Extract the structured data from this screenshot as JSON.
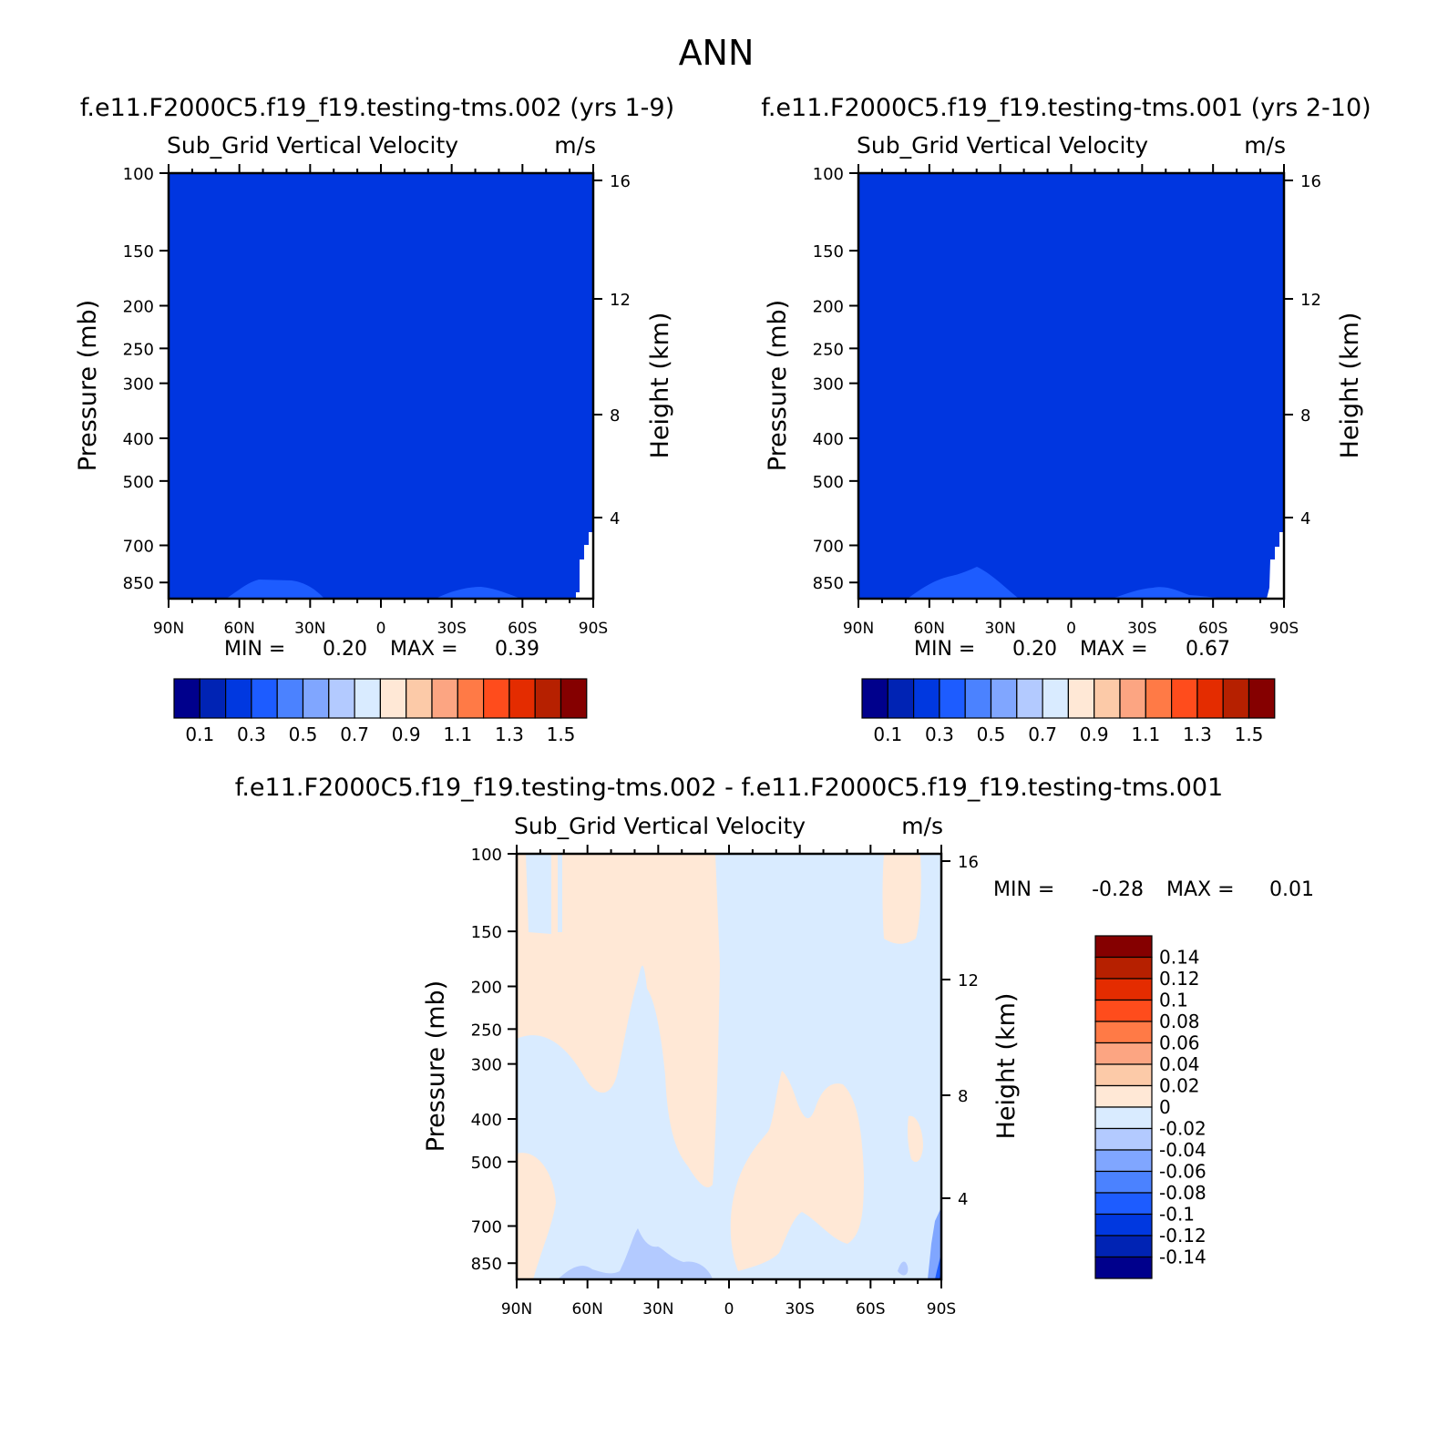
{
  "figure": {
    "title": "ANN",
    "diff_title": "f.e11.F2000C5.f19_f19.testing-tms.002 - f.e11.F2000C5.f19_f19.testing-tms.001"
  },
  "colors": {
    "main_scale": [
      "#00008c",
      "#0023b4",
      "#0038e0",
      "#1d5cff",
      "#4b82ff",
      "#80a6ff",
      "#b3caff",
      "#d9ebff",
      "#ffe8d6",
      "#fccaa8",
      "#fca582",
      "#ff7a46",
      "#ff4c1c",
      "#e42c00",
      "#b62000",
      "#850000"
    ],
    "diff_scale": [
      "#00008c",
      "#0023b4",
      "#0038e0",
      "#1d5cff",
      "#4b82ff",
      "#80a6ff",
      "#b3caff",
      "#d9ebff",
      "#ffe8d6",
      "#fccaa8",
      "#fca582",
      "#ff7a46",
      "#ff4c1c",
      "#e42c00",
      "#b62000",
      "#850000"
    ]
  },
  "chart_data": [
    {
      "type": "heatmap",
      "title": "f.e11.F2000C5.f19_f19.testing-tms.002 (yrs 1-9)",
      "subtitle": "Sub_Grid Vertical Velocity",
      "units": "m/s",
      "xlabel": "",
      "ylabel": "Pressure (mb)",
      "y2label": "Height (km)",
      "x_ticks": [
        "90N",
        "60N",
        "30N",
        "0",
        "30S",
        "60S",
        "90S"
      ],
      "y_ticks": [
        100,
        150,
        200,
        250,
        300,
        400,
        500,
        700,
        850
      ],
      "y2_ticks": [
        16,
        12,
        8,
        4
      ],
      "ylim": [
        100,
        925
      ],
      "min_label": "MIN =",
      "min_value": "0.20",
      "max_label": "MAX =",
      "max_value": "0.39",
      "colorbar_labels": [
        "0.1",
        "0.3",
        "0.5",
        "0.7",
        "0.9",
        "1.1",
        "1.3",
        "1.5"
      ],
      "background_value": "0.2-0.3"
    },
    {
      "type": "heatmap",
      "title": "f.e11.F2000C5.f19_f19.testing-tms.001 (yrs 2-10)",
      "subtitle": "Sub_Grid Vertical Velocity",
      "units": "m/s",
      "xlabel": "",
      "ylabel": "Pressure (mb)",
      "y2label": "Height (km)",
      "x_ticks": [
        "90N",
        "60N",
        "30N",
        "0",
        "30S",
        "60S",
        "90S"
      ],
      "y_ticks": [
        100,
        150,
        200,
        250,
        300,
        400,
        500,
        700,
        850
      ],
      "y2_ticks": [
        16,
        12,
        8,
        4
      ],
      "ylim": [
        100,
        925
      ],
      "min_label": "MIN =",
      "min_value": "0.20",
      "max_label": "MAX =",
      "max_value": "0.67",
      "colorbar_labels": [
        "0.1",
        "0.3",
        "0.5",
        "0.7",
        "0.9",
        "1.1",
        "1.3",
        "1.5"
      ],
      "background_value": "0.2-0.3"
    },
    {
      "type": "heatmap",
      "title": "",
      "subtitle": "Sub_Grid Vertical Velocity",
      "units": "m/s",
      "xlabel": "",
      "ylabel": "Pressure (mb)",
      "y2label": "Height (km)",
      "x_ticks": [
        "90N",
        "60N",
        "30N",
        "0",
        "30S",
        "60S",
        "90S"
      ],
      "y_ticks": [
        100,
        150,
        200,
        250,
        300,
        400,
        500,
        700,
        850
      ],
      "y2_ticks": [
        16,
        12,
        8,
        4
      ],
      "ylim": [
        100,
        925
      ],
      "min_label": "MIN =",
      "min_value": "-0.28",
      "max_label": "MAX =",
      "max_value": "0.01",
      "colorbar_labels": [
        "0.14",
        "0.12",
        "0.1",
        "0.08",
        "0.06",
        "0.04",
        "0.02",
        "0",
        "-0.02",
        "-0.04",
        "-0.06",
        "-0.08",
        "-0.1",
        "-0.12",
        "-0.14"
      ],
      "background_value": "-0.02-0"
    }
  ]
}
